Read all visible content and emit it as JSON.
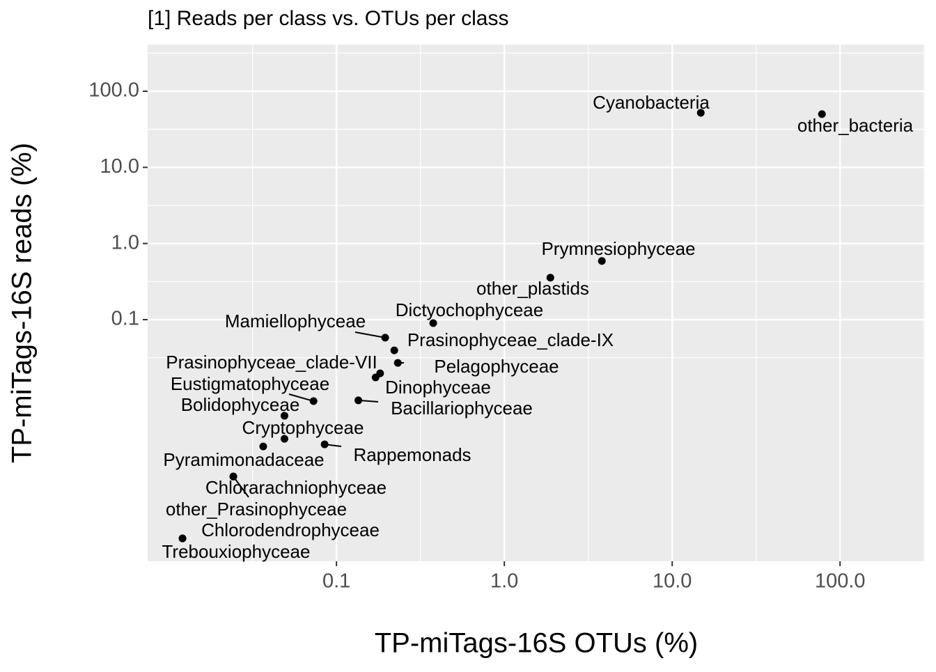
{
  "chart_data": {
    "type": "scatter",
    "title": "[1] Reads per class vs. OTUs per class",
    "x_label": "TP-miTags-16S OTUs (%)",
    "y_label": "TP-miTags-16S reads (%)",
    "x_scale": "log",
    "y_scale": "log",
    "grid": true,
    "color": "#000000",
    "xlim": [
      0.0075,
      320
    ],
    "ylim": [
      6.7e-05,
      410
    ],
    "xticks": [
      0.1,
      {
        "value": 1,
        "label": "1.0"
      },
      {
        "value": 10,
        "label": "10.0"
      },
      {
        "value": 100,
        "label": "100.0"
      }
    ],
    "yticks": [
      0.1,
      {
        "value": 1,
        "label": "1.0"
      },
      {
        "value": 10,
        "label": "10.0"
      },
      {
        "value": 100,
        "label": "100.0"
      }
    ],
    "labels": [
      "Cyanobacteria",
      "other_bacteria",
      "Prymnesiophyceae",
      "other_plastids",
      "Dictyochophyceae",
      "Mamiellophyceae",
      "Prasinophyceae_clade-IX",
      "Pelagophyceae",
      "Prasinophyceae_clade-VII",
      "Dinophyceae",
      "Eustigmatophyceae",
      "Bacillariophyceae",
      "Bolidophyceae",
      "Cryptophyceae",
      "Rappemonads",
      "Pyramimonadaceae",
      "Chlorarachniophyceae",
      "other_Prasinophyceae",
      "Chlorodendrophyceae",
      "Trebouxiophyceae"
    ],
    "x": [
      14.8,
      78,
      3.81,
      1.88,
      0.377,
      0.195,
      0.221,
      0.232,
      0.182,
      0.171,
      0.073,
      0.135,
      0.049,
      0.049,
      0.085,
      0.0366,
      0.0243,
      0.0243,
      0.0121,
      0.0121
    ],
    "y": [
      52,
      50,
      0.59,
      0.356,
      0.09,
      0.058,
      0.0395,
      0.027,
      0.0197,
      0.0174,
      0.0085,
      0.0087,
      0.00546,
      0.00272,
      0.0023,
      0.00216,
      0.00087,
      0.00087,
      0.000134,
      0.000134
    ]
  }
}
